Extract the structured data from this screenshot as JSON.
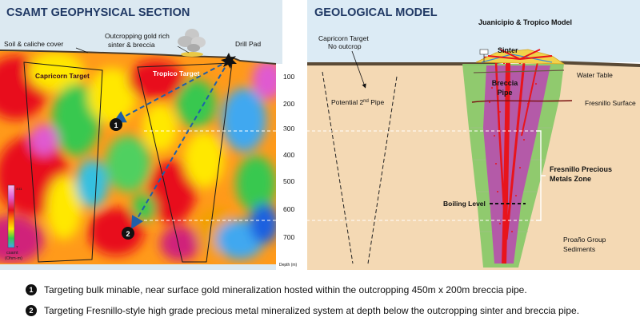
{
  "left_panel": {
    "title": "CSAMT GEOPHYSICAL SECTION",
    "labels": {
      "soil_cover": "Soil & caliche cover",
      "outcrop": [
        "Outcropping gold rich",
        "sinter & breccia"
      ],
      "drill_pad": "Drill Pad",
      "capricorn": "Capricorn Target",
      "tropico": "Tropico Target"
    },
    "legend": {
      "top_value": "441",
      "bottom_value": "7",
      "title": [
        "csamt",
        "(Ohm-m)"
      ]
    },
    "targets": [
      "1",
      "2"
    ]
  },
  "depth_axis": {
    "ticks": [
      "100",
      "200",
      "300",
      "400",
      "500",
      "600",
      "700"
    ],
    "label": "Depth (m)"
  },
  "right_panel": {
    "title": "GEOLOGICAL MODEL",
    "labels": {
      "model": "Juanicipio & Tropico Model",
      "capricorn": [
        "Capricorn Target",
        "No outcrop"
      ],
      "pipe2_text": "Potential 2",
      "pipe2_sup": "nd",
      "pipe2_end": " Pipe",
      "sinter": "Sinter",
      "breccia": [
        "Breccia",
        "Pipe"
      ],
      "water_table": "Water Table",
      "fresnillo_surface": "Fresnillo Surface",
      "precious_zone": [
        "Fresnillo Precious",
        "Metals Zone"
      ],
      "boiling": "Boiling Level",
      "proano": [
        "Proaño Group",
        "Sediments"
      ]
    }
  },
  "notes": [
    {
      "num": "1",
      "text": "Targeting bulk minable, near surface gold mineralization hosted within the outcropping 450m x 200m breccia pipe."
    },
    {
      "num": "2",
      "text": "Targeting Fresnillo-style high grade precious metal mineralized system at depth below the outcropping sinter and breccia pipe."
    }
  ],
  "colors": {
    "title": "#1f3864",
    "sky": "#dcebf5",
    "sediments": "#f4d9b4",
    "green_zone": "#8ac96a",
    "pipe": "#b45aa8",
    "vein": "#e8141c"
  }
}
